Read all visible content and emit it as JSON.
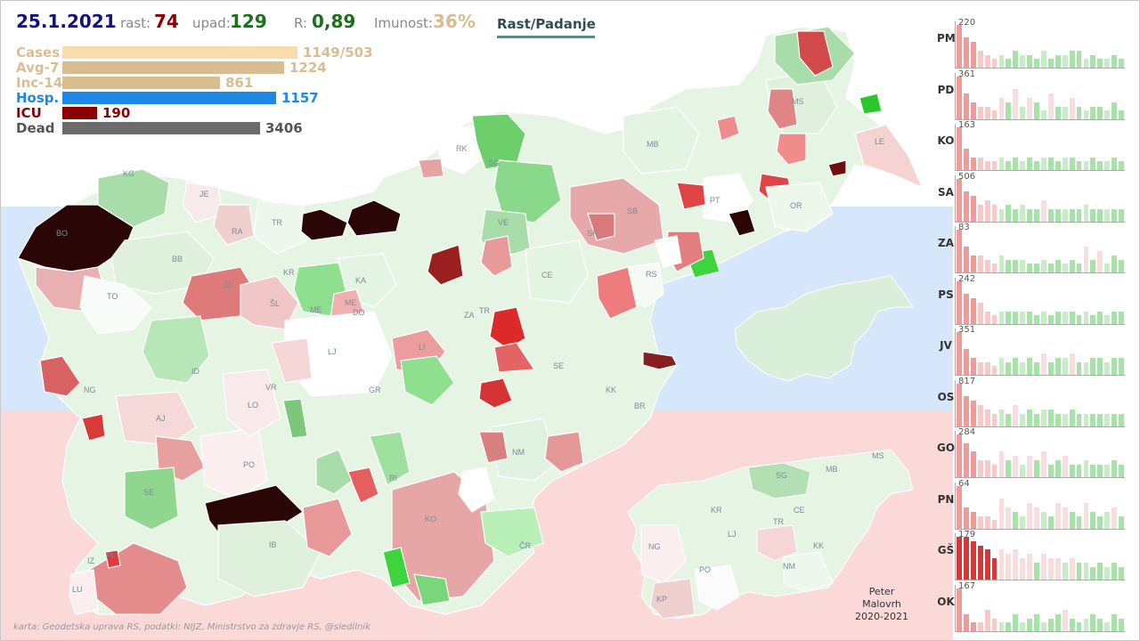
{
  "header": {
    "date": "25.1.2021",
    "growth_label": "rast:",
    "growth_value": "74",
    "decline_label": "upad:",
    "decline_value": "129",
    "r_label": "R:",
    "r_value": "0,89",
    "immunity_label": "Imunost:",
    "immunity_value": "36%",
    "toggle_button": "Rast/Padanje"
  },
  "stats": [
    {
      "label": "Cases",
      "value": "1149/503",
      "color": "#f8dcae",
      "fraction": 0.88
    },
    {
      "label": "Avg-7",
      "value": "1224",
      "color": "#d8bd90",
      "fraction": 0.83
    },
    {
      "label": "Inc-14",
      "value": "861",
      "color": "#d8bd90",
      "fraction": 0.59
    },
    {
      "label": "Hosp.",
      "value": "1157",
      "color": "#1e88e5",
      "fraction": 0.8
    },
    {
      "label": "ICU",
      "value": "190",
      "color": "#8b0000",
      "fraction": 0.13
    },
    {
      "label": "Dead",
      "value": "3406",
      "color": "#6b6b6b",
      "fraction": 0.74
    }
  ],
  "regions_panel": [
    {
      "code": "PM",
      "max": "220"
    },
    {
      "code": "PD",
      "max": "361"
    },
    {
      "code": "KO",
      "max": "163"
    },
    {
      "code": "SA",
      "max": "506"
    },
    {
      "code": "ZA",
      "max": "83"
    },
    {
      "code": "PS",
      "max": "242"
    },
    {
      "code": "JV",
      "max": "351"
    },
    {
      "code": "OS",
      "max": "817"
    },
    {
      "code": "GO",
      "max": "284"
    },
    {
      "code": "PN",
      "max": "64"
    },
    {
      "code": "GŠ",
      "max": "179"
    },
    {
      "code": "OK",
      "max": "167"
    }
  ],
  "map_labels": [
    "BO",
    "KG",
    "JE",
    "RA",
    "TR",
    "KR",
    "BB",
    "TO",
    "ŽE",
    "ŠL",
    "ME",
    "MED",
    "KA",
    "RK",
    "SG",
    "VE",
    "CE",
    "ZA",
    "TR",
    "SK",
    "SB",
    "MB",
    "PT",
    "MS",
    "LE",
    "OR",
    "RS",
    "LI",
    "LJ",
    "ID",
    "VR",
    "GR",
    "SE",
    "KK",
    "BR",
    "NG",
    "AJ",
    "LO",
    "PO",
    "RI",
    "NM",
    "KO",
    "ČR",
    "IB",
    "SE",
    "IZ",
    "PI",
    "LU"
  ],
  "mini_map_labels": [
    "SG",
    "MB",
    "MS",
    "KR",
    "CE",
    "LJ",
    "TR",
    "NG",
    "KK",
    "NM",
    "PO",
    "KP"
  ],
  "signature": {
    "line1": "Peter",
    "line2": "Malovrh",
    "line3": "2020-2021"
  },
  "credit": "karta: Geodetska uprava RS,  podatki: NIJZ, Ministrstvo za zdravje RS, @sledilnik",
  "colors": {
    "dark": "#2a0606",
    "red": "#e03a3a",
    "green": "#7bd67b",
    "light_green": "#dff2df",
    "pink": "#f2b8b8"
  }
}
